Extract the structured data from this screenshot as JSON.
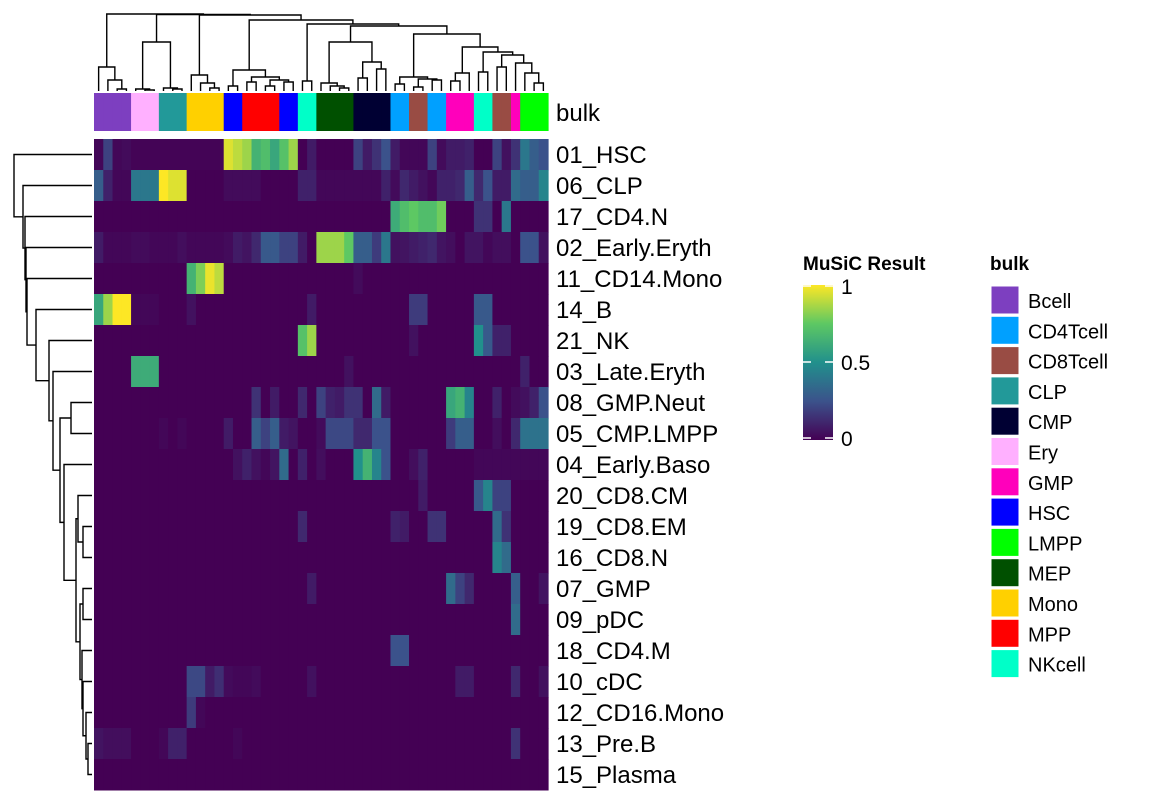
{
  "chart_data": {
    "type": "heatmap",
    "annotation_label": "bulk",
    "rows": [
      "01_HSC",
      "06_CLP",
      "17_CD4.N",
      "02_Early.Eryth",
      "11_CD14.Mono",
      "14_B",
      "21_NK",
      "03_Late.Eryth",
      "08_GMP.Neut",
      "05_CMP.LMPP",
      "04_Early.Baso",
      "20_CD8.CM",
      "19_CD8.EM",
      "16_CD8.N",
      "07_GMP",
      "09_pDC",
      "18_CD4.M",
      "10_cDC",
      "12_CD16.Mono",
      "13_Pre.B",
      "15_Plasma"
    ],
    "column_bulk": [
      "Bcell",
      "Bcell",
      "Bcell",
      "Bcell",
      "Ery",
      "Ery",
      "Ery",
      "CLP",
      "CLP",
      "CLP",
      "Mono",
      "Mono",
      "Mono",
      "Mono",
      "HSC",
      "HSC",
      "MPP",
      "MPP",
      "MPP",
      "MPP",
      "HSC",
      "HSC",
      "NKcell",
      "NKcell",
      "MEP",
      "MEP",
      "MEP",
      "MEP",
      "CMP",
      "CMP",
      "CMP",
      "CMP",
      "CD4Tcell",
      "CD4Tcell",
      "CD8Tcell",
      "CD8Tcell",
      "CD4Tcell",
      "CD4Tcell",
      "GMP",
      "GMP",
      "GMP",
      "NKcell",
      "NKcell",
      "CD8Tcell",
      "CD8Tcell",
      "GMP",
      "LMPP",
      "LMPP",
      "LMPP"
    ],
    "values": [
      [
        0.02,
        0.2,
        0.02,
        0.03,
        0.01,
        0.01,
        0.01,
        0.01,
        0.01,
        0.01,
        0.01,
        0.01,
        0.01,
        0.01,
        0.95,
        0.9,
        0.85,
        0.65,
        0.7,
        0.6,
        0.72,
        0.85,
        0,
        0.08,
        0,
        0,
        0,
        0,
        0.2,
        0.08,
        0.15,
        0.25,
        0.08,
        0.02,
        0.02,
        0.02,
        0.2,
        0.03,
        0.08,
        0.08,
        0.1,
        0,
        0,
        0.2,
        0.05,
        0.15,
        0.4,
        0.3,
        0.25
      ],
      [
        0.3,
        0.1,
        0.02,
        0.02,
        0.4,
        0.4,
        0.4,
        1.0,
        0.95,
        0.95,
        0,
        0,
        0,
        0,
        0.03,
        0.03,
        0.03,
        0.03,
        0,
        0,
        0,
        0,
        0.1,
        0.1,
        0.02,
        0.02,
        0.02,
        0.02,
        0.02,
        0.02,
        0.02,
        0.1,
        0.03,
        0.12,
        0.08,
        0.05,
        0.02,
        0.1,
        0.1,
        0.12,
        0.3,
        0.12,
        0.25,
        0.08,
        0.08,
        0.35,
        0.3,
        0.3,
        0.45
      ],
      [
        0,
        0,
        0,
        0,
        0,
        0,
        0,
        0,
        0,
        0,
        0,
        0,
        0,
        0,
        0,
        0,
        0,
        0,
        0,
        0,
        0,
        0,
        0,
        0,
        0,
        0,
        0,
        0,
        0,
        0,
        0,
        0,
        0.62,
        0.7,
        0.75,
        0.7,
        0.7,
        0.78,
        0,
        0,
        0,
        0.15,
        0.15,
        0,
        0.4,
        0,
        0,
        0,
        0
      ],
      [
        0.08,
        0.02,
        0.02,
        0.02,
        0.03,
        0.03,
        0.02,
        0.02,
        0.02,
        0.04,
        0.02,
        0.02,
        0.02,
        0.02,
        0.03,
        0.08,
        0.06,
        0.12,
        0.28,
        0.28,
        0.2,
        0.2,
        0.08,
        0,
        0.85,
        0.85,
        0.85,
        0.75,
        0.3,
        0.3,
        0.18,
        0.4,
        0.05,
        0.06,
        0.08,
        0.1,
        0.12,
        0.06,
        0.04,
        0,
        0.06,
        0.06,
        0.02,
        0.04,
        0.04,
        0,
        0.25,
        0.25,
        0.05
      ],
      [
        0,
        0,
        0,
        0,
        0,
        0,
        0,
        0,
        0,
        0,
        0.65,
        0.8,
        0.97,
        0.9,
        0,
        0,
        0,
        0,
        0,
        0,
        0,
        0,
        0,
        0,
        0,
        0,
        0,
        0,
        0.03,
        0,
        0,
        0,
        0,
        0,
        0,
        0,
        0,
        0,
        0,
        0,
        0,
        0,
        0,
        0,
        0,
        0,
        0,
        0,
        0
      ],
      [
        0.6,
        0.85,
        1,
        1,
        0.02,
        0.02,
        0.02,
        0,
        0,
        0,
        0.05,
        0,
        0,
        0,
        0,
        0,
        0,
        0,
        0,
        0,
        0,
        0,
        0,
        0.08,
        0,
        0,
        0,
        0,
        0,
        0,
        0,
        0,
        0,
        0,
        0.18,
        0.18,
        0,
        0,
        0,
        0,
        0,
        0.28,
        0.28,
        0,
        0,
        0,
        0,
        0,
        0
      ],
      [
        0,
        0,
        0,
        0,
        0,
        0,
        0,
        0,
        0,
        0,
        0,
        0,
        0,
        0,
        0,
        0,
        0,
        0,
        0,
        0,
        0,
        0,
        0.72,
        0.85,
        0,
        0,
        0,
        0,
        0,
        0,
        0,
        0,
        0,
        0,
        0.05,
        0,
        0,
        0,
        0,
        0,
        0,
        0.5,
        0.28,
        0.1,
        0.1,
        0,
        0,
        0,
        0
      ],
      [
        0,
        0,
        0,
        0,
        0.62,
        0.62,
        0.62,
        0,
        0,
        0,
        0,
        0,
        0,
        0,
        0,
        0,
        0,
        0,
        0,
        0,
        0,
        0,
        0,
        0,
        0,
        0,
        0,
        0.05,
        0,
        0,
        0,
        0,
        0,
        0,
        0,
        0,
        0,
        0,
        0,
        0,
        0,
        0,
        0,
        0,
        0,
        0,
        0.1,
        0,
        0
      ],
      [
        0,
        0,
        0,
        0,
        0,
        0,
        0,
        0,
        0,
        0,
        0,
        0,
        0,
        0,
        0,
        0,
        0,
        0.15,
        0,
        0.08,
        0,
        0,
        0.12,
        0,
        0.2,
        0.1,
        0.08,
        0.15,
        0.15,
        0,
        0.35,
        0.08,
        0,
        0,
        0,
        0,
        0,
        0,
        0.6,
        0.65,
        0.45,
        0,
        0,
        0.1,
        0,
        0.03,
        0.05,
        0.1,
        0.25
      ],
      [
        0,
        0,
        0,
        0,
        0,
        0,
        0,
        0.02,
        0,
        0.02,
        0,
        0,
        0,
        0,
        0.08,
        0,
        0,
        0.3,
        0.2,
        0.3,
        0.08,
        0.06,
        0,
        0,
        0.03,
        0.22,
        0.22,
        0.22,
        0.12,
        0.12,
        0.25,
        0.25,
        0,
        0,
        0,
        0,
        0,
        0,
        0.18,
        0.3,
        0.3,
        0,
        0,
        0.04,
        0,
        0.12,
        0.38,
        0.38,
        0.38
      ],
      [
        0,
        0,
        0,
        0,
        0,
        0,
        0,
        0,
        0,
        0,
        0,
        0,
        0,
        0,
        0,
        0.05,
        0.1,
        0.05,
        0.02,
        0.06,
        0.35,
        0,
        0.1,
        0,
        0.04,
        0,
        0,
        0,
        0.5,
        0.65,
        0.45,
        0.25,
        0,
        0,
        0.04,
        0.1,
        0,
        0,
        0,
        0,
        0,
        0.02,
        0.02,
        0.02,
        0.02,
        0.02,
        0.02,
        0.02,
        0.02
      ],
      [
        0,
        0,
        0,
        0,
        0,
        0,
        0,
        0,
        0,
        0,
        0,
        0,
        0,
        0,
        0,
        0,
        0,
        0,
        0,
        0,
        0,
        0,
        0,
        0,
        0,
        0,
        0,
        0,
        0,
        0,
        0,
        0,
        0,
        0,
        0,
        0.08,
        0,
        0,
        0,
        0,
        0,
        0.28,
        0.45,
        0.2,
        0.2,
        0,
        0,
        0,
        0
      ],
      [
        0,
        0,
        0,
        0,
        0,
        0,
        0,
        0,
        0,
        0,
        0,
        0,
        0,
        0,
        0,
        0,
        0,
        0,
        0,
        0,
        0,
        0,
        0.12,
        0,
        0,
        0,
        0,
        0,
        0,
        0,
        0,
        0,
        0.1,
        0.08,
        0,
        0,
        0.15,
        0.15,
        0,
        0,
        0,
        0,
        0,
        0.35,
        0.15,
        0,
        0,
        0,
        0
      ],
      [
        0,
        0,
        0,
        0,
        0,
        0,
        0,
        0,
        0,
        0,
        0,
        0,
        0,
        0,
        0,
        0,
        0,
        0,
        0,
        0,
        0,
        0,
        0,
        0,
        0,
        0,
        0,
        0,
        0,
        0,
        0,
        0,
        0,
        0,
        0,
        0,
        0,
        0,
        0,
        0,
        0,
        0,
        0,
        0.45,
        0.35,
        0,
        0,
        0,
        0
      ],
      [
        0,
        0,
        0,
        0,
        0,
        0,
        0,
        0,
        0,
        0,
        0,
        0,
        0,
        0,
        0,
        0,
        0,
        0,
        0,
        0,
        0,
        0,
        0,
        0.08,
        0,
        0,
        0,
        0,
        0,
        0,
        0,
        0,
        0,
        0,
        0,
        0,
        0,
        0,
        0.35,
        0.2,
        0.12,
        0,
        0,
        0,
        0,
        0.3,
        0,
        0,
        0.06
      ],
      [
        0,
        0,
        0,
        0,
        0,
        0,
        0,
        0,
        0,
        0,
        0,
        0,
        0,
        0,
        0,
        0,
        0,
        0,
        0,
        0,
        0,
        0,
        0,
        0,
        0,
        0,
        0,
        0,
        0,
        0,
        0,
        0,
        0,
        0,
        0,
        0,
        0,
        0,
        0,
        0,
        0,
        0,
        0,
        0,
        0,
        0.35,
        0,
        0,
        0
      ],
      [
        0,
        0,
        0,
        0,
        0,
        0,
        0,
        0,
        0,
        0,
        0,
        0,
        0,
        0,
        0,
        0,
        0,
        0,
        0,
        0,
        0,
        0,
        0,
        0,
        0,
        0,
        0,
        0,
        0,
        0,
        0,
        0,
        0.25,
        0.25,
        0,
        0,
        0,
        0,
        0,
        0,
        0,
        0,
        0,
        0,
        0,
        0,
        0,
        0,
        0
      ],
      [
        0,
        0,
        0,
        0,
        0,
        0,
        0,
        0,
        0,
        0,
        0.22,
        0.22,
        0.08,
        0.14,
        0.03,
        0.02,
        0.02,
        0.03,
        0,
        0,
        0,
        0,
        0,
        0.05,
        0,
        0,
        0,
        0,
        0,
        0,
        0,
        0,
        0,
        0,
        0,
        0,
        0,
        0,
        0,
        0.08,
        0.08,
        0,
        0,
        0,
        0,
        0.12,
        0,
        0,
        0.05
      ],
      [
        0,
        0,
        0,
        0,
        0,
        0,
        0,
        0,
        0,
        0,
        0.18,
        0.02,
        0,
        0,
        0,
        0,
        0,
        0,
        0,
        0,
        0,
        0,
        0,
        0,
        0,
        0,
        0,
        0,
        0,
        0,
        0,
        0,
        0,
        0,
        0,
        0,
        0,
        0,
        0,
        0,
        0,
        0,
        0,
        0,
        0,
        0,
        0,
        0,
        0
      ],
      [
        0.06,
        0.04,
        0.04,
        0.04,
        0,
        0,
        0,
        0.02,
        0.1,
        0.1,
        0,
        0,
        0,
        0,
        0,
        0.02,
        0,
        0,
        0,
        0,
        0,
        0,
        0,
        0,
        0,
        0,
        0,
        0,
        0,
        0,
        0,
        0,
        0,
        0,
        0,
        0,
        0,
        0,
        0,
        0,
        0,
        0,
        0,
        0,
        0,
        0.15,
        0,
        0,
        0
      ],
      [
        0,
        0,
        0,
        0,
        0,
        0,
        0,
        0,
        0,
        0,
        0,
        0,
        0,
        0,
        0,
        0,
        0,
        0,
        0,
        0,
        0,
        0,
        0,
        0,
        0,
        0,
        0,
        0,
        0,
        0,
        0,
        0,
        0,
        0,
        0,
        0,
        0,
        0,
        0,
        0,
        0,
        0,
        0,
        0,
        0,
        0,
        0,
        0,
        0
      ]
    ],
    "color_scale": {
      "title": "MuSiC Result",
      "range": [
        0,
        1
      ],
      "ticks": [
        "1",
        "0.5",
        "0"
      ],
      "tick_values": [
        1,
        0.5,
        0
      ],
      "colors": [
        "#440154",
        "#3b528b",
        "#21908c",
        "#5dc863",
        "#fde725"
      ]
    },
    "bulk_legend": {
      "title": "bulk",
      "items": [
        {
          "label": "Bcell",
          "color": "#7d3fc0"
        },
        {
          "label": "CD4Tcell",
          "color": "#00a0ff"
        },
        {
          "label": "CD8Tcell",
          "color": "#994c44"
        },
        {
          "label": "CLP",
          "color": "#229999"
        },
        {
          "label": "CMP",
          "color": "#000033"
        },
        {
          "label": "Ery",
          "color": "#ffb0ff"
        },
        {
          "label": "GMP",
          "color": "#ff00bb"
        },
        {
          "label": "HSC",
          "color": "#0000ff"
        },
        {
          "label": "LMPP",
          "color": "#00ff00"
        },
        {
          "label": "MEP",
          "color": "#005000"
        },
        {
          "label": "Mono",
          "color": "#ffd000"
        },
        {
          "label": "MPP",
          "color": "#ff0000"
        },
        {
          "label": "NKcell",
          "color": "#00ffc8"
        }
      ]
    }
  }
}
